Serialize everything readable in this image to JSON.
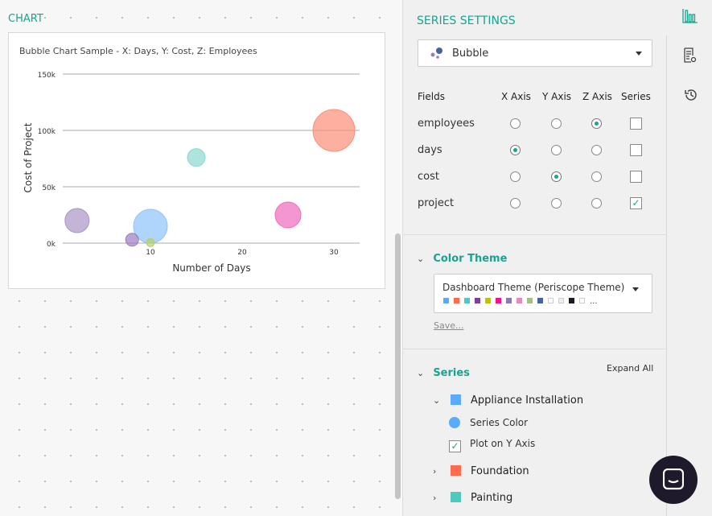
{
  "chart_label": "CHART",
  "chart_data": {
    "type": "scatter",
    "title": "Bubble Chart Sample - X: Days, Y: Cost, Z: Employees",
    "xlabel": "Number of Days",
    "ylabel": "Cost of Project",
    "xlim": [
      0,
      33
    ],
    "ylim": [
      0,
      150000
    ],
    "xticks": [
      {
        "v": 10,
        "label": "10"
      },
      {
        "v": 20,
        "label": "20"
      },
      {
        "v": 30,
        "label": "30"
      }
    ],
    "yticks": [
      {
        "v": 0,
        "label": "0k"
      },
      {
        "v": 50000,
        "label": "50k"
      },
      {
        "v": 100000,
        "label": "100k"
      },
      {
        "v": 150000,
        "label": "150k"
      }
    ],
    "grid": true,
    "points": [
      {
        "x": 2,
        "y": 20000,
        "z": 15,
        "color": "#a994c8"
      },
      {
        "x": 10,
        "y": 15000,
        "z": 21,
        "color": "#8fc3fb"
      },
      {
        "x": 8,
        "y": 3000,
        "z": 8,
        "color": "#9c7cc0"
      },
      {
        "x": 10,
        "y": 500,
        "z": 5,
        "color": "#b5d16a"
      },
      {
        "x": 15,
        "y": 76000,
        "z": 11,
        "color": "#8ad9d0"
      },
      {
        "x": 25,
        "y": 25000,
        "z": 16,
        "color": "#f06bbd"
      },
      {
        "x": 30,
        "y": 100000,
        "z": 26,
        "color": "#fc8f76"
      }
    ]
  },
  "panel": {
    "title": "SERIES SETTINGS",
    "chart_type": "Bubble",
    "headers": [
      "Fields",
      "X Axis",
      "Y Axis",
      "Z Axis",
      "Series"
    ],
    "fields": [
      {
        "name": "employees",
        "x": false,
        "y": false,
        "z": true,
        "series": false
      },
      {
        "name": "days",
        "x": true,
        "y": false,
        "z": false,
        "series": false
      },
      {
        "name": "cost",
        "x": false,
        "y": true,
        "z": false,
        "series": false
      },
      {
        "name": "project",
        "x": false,
        "y": false,
        "z": false,
        "series": true
      }
    ],
    "color_theme": {
      "title": "Color Theme",
      "value": "Dashboard Theme (Periscope Theme)",
      "swatches": [
        "#5aabfb",
        "#fd6a4c",
        "#4fc9bd",
        "#7d3f9e",
        "#b7c800",
        "#ee1491",
        "#8b77bd",
        "#e589c1",
        "#a4c184",
        "#44649e",
        "#ffffff",
        "#eeeeee",
        "#1a1a26",
        "#ffffff"
      ],
      "more": "...",
      "save": "Save..."
    },
    "series": {
      "title": "Series",
      "expand_all": "Expand All",
      "items": [
        {
          "name": "Appliance Installation",
          "color": "#5aabfb",
          "expanded": true,
          "series_color_label": "Series Color",
          "plot_y_label": "Plot on Y Axis"
        },
        {
          "name": "Foundation",
          "color": "#fd6a4c",
          "expanded": false
        },
        {
          "name": "Painting",
          "color": "#4fc9bd",
          "expanded": false
        }
      ]
    }
  }
}
